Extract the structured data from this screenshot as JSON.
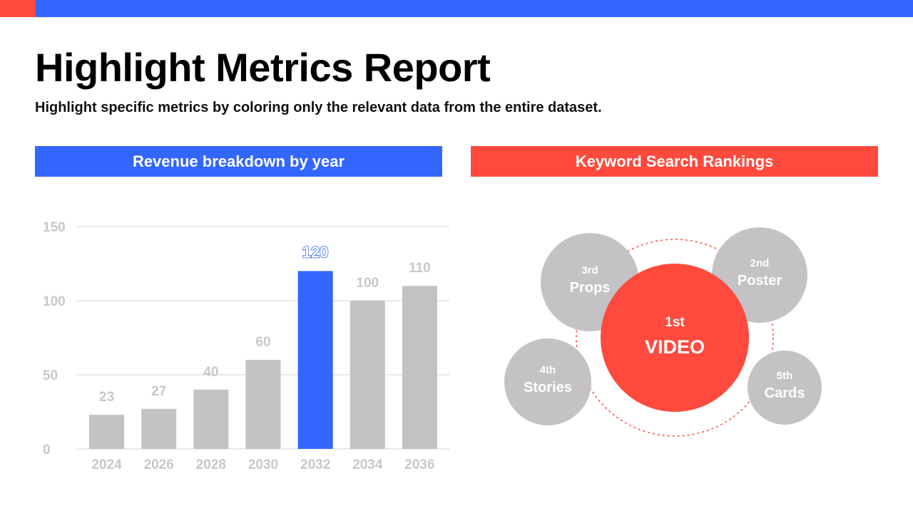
{
  "colors": {
    "blue": "#3366FF",
    "red": "#FF4A3D",
    "gray": "#C4C2C4",
    "gray_text": "#C9C7C9",
    "grid": "#E3E2E3"
  },
  "header": {
    "title": "Highlight Metrics Report",
    "subtitle": "Highlight specific metrics by coloring only the relevant data from the entire dataset."
  },
  "left_panel": {
    "title": "Revenue breakdown by year"
  },
  "right_panel": {
    "title": "Keyword Search Rankings"
  },
  "chart_data": [
    {
      "type": "bar",
      "title": "Revenue breakdown by year",
      "categories": [
        "2024",
        "2026",
        "2028",
        "2030",
        "2032",
        "2034",
        "2036"
      ],
      "values": [
        23,
        27,
        40,
        60,
        120,
        100,
        110
      ],
      "ylim": [
        0,
        150
      ],
      "yticks": [
        0,
        50,
        100,
        150
      ],
      "grid": true,
      "highlight_index": 4
    },
    {
      "type": "bubble",
      "title": "Keyword Search Rankings",
      "items": [
        {
          "rank": "1st",
          "label": "VIDEO",
          "highlight": true
        },
        {
          "rank": "2nd",
          "label": "Poster",
          "highlight": false
        },
        {
          "rank": "3rd",
          "label": "Props",
          "highlight": false
        },
        {
          "rank": "4th",
          "label": "Stories",
          "highlight": false
        },
        {
          "rank": "5th",
          "label": "Cards",
          "highlight": false
        }
      ]
    }
  ]
}
